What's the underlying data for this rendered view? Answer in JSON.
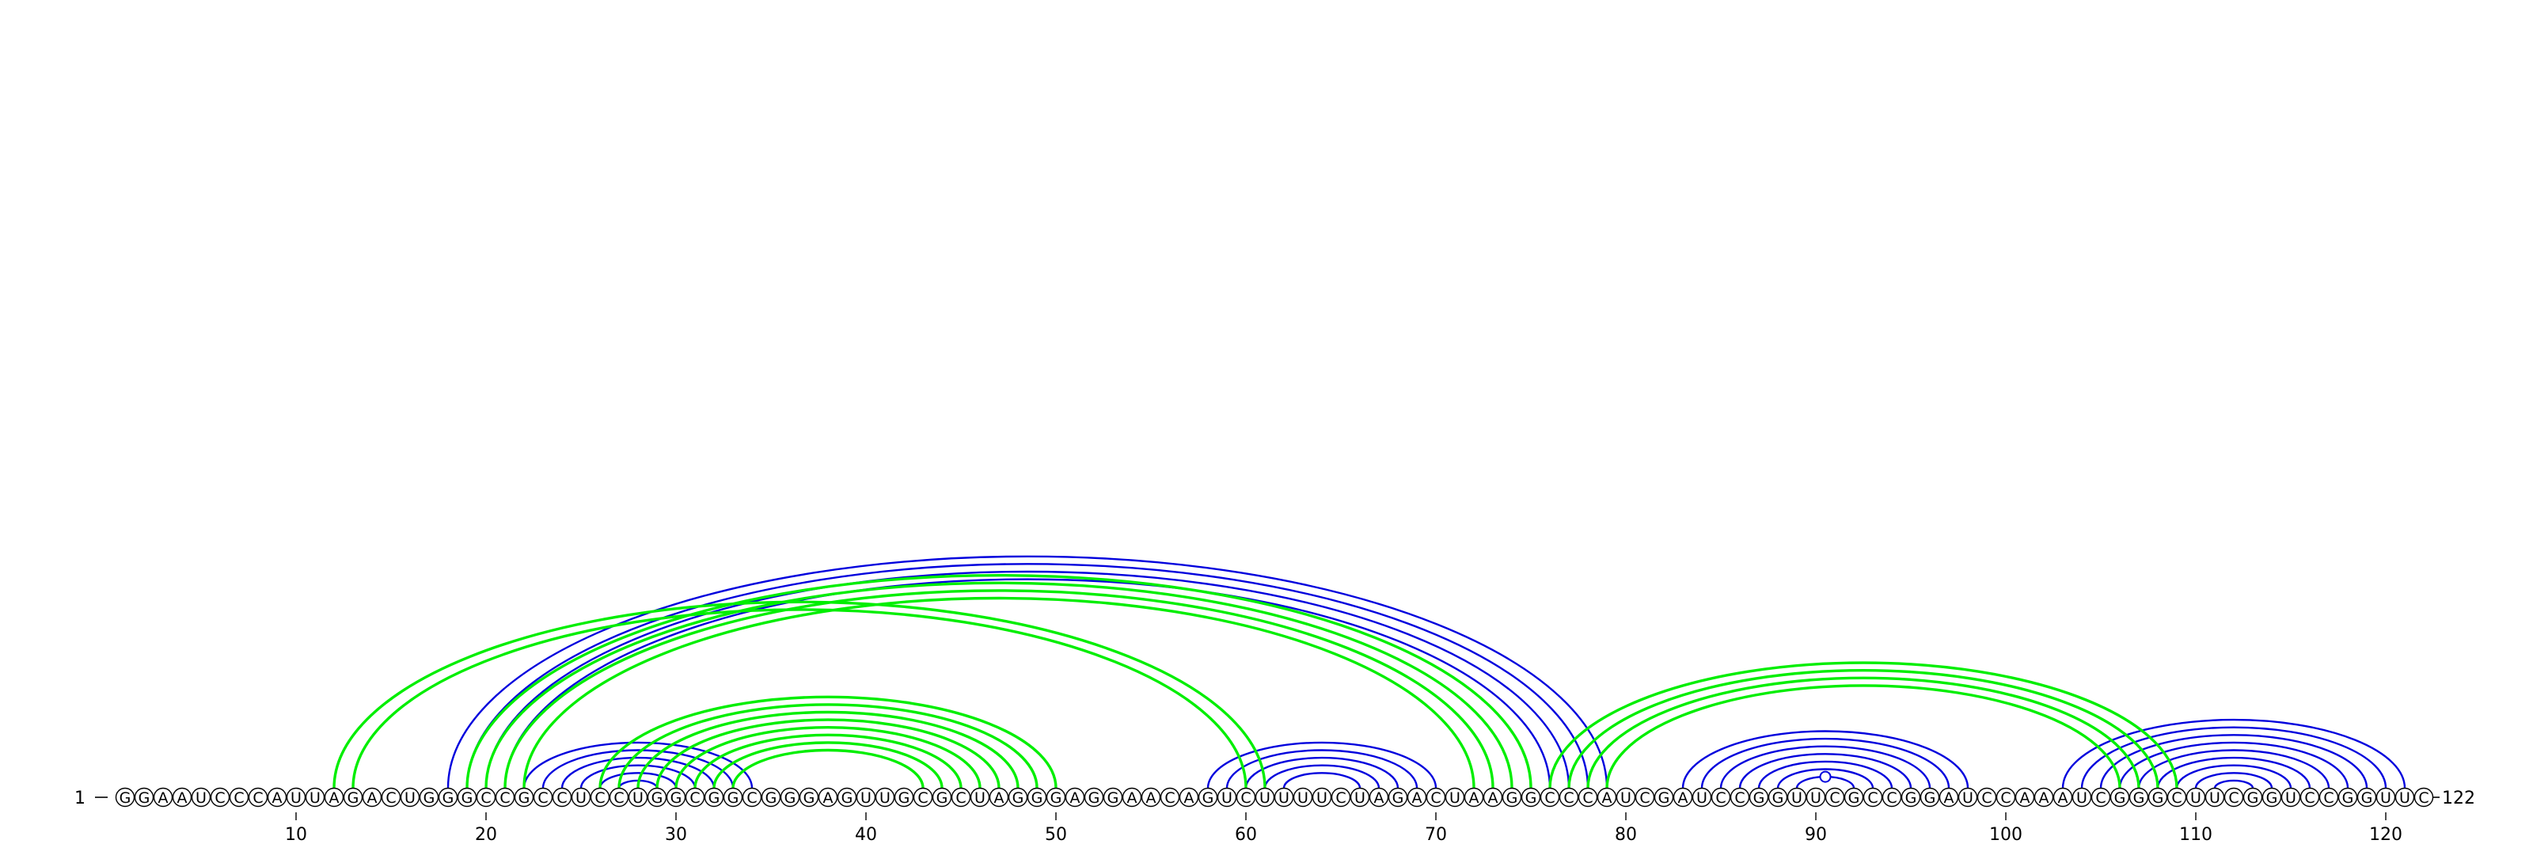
{
  "title": "",
  "sequence": "GGAAUCCCAUUAGACUGGGCCGCCUCCUGGCGGCGGGAGUUGCGCUAGGGAGGAACAGUCUUUUCUAGACUAAGGCCCAUCGAUCCGGUUCGCCGGAUCCAAAUCGGGCUUCGGUCCGGUUC",
  "start_label": "1",
  "end_label": "122",
  "ticks": [
    "10",
    "20",
    "30",
    "40",
    "50",
    "60",
    "70",
    "80",
    "90",
    "100",
    "110",
    "120"
  ],
  "colors": {
    "blue": "#0000dd",
    "green": "#00ee00",
    "text": "#000000"
  },
  "structures": [
    {
      "color": "#0000dd",
      "pairs": [
        [
          18,
          79
        ],
        [
          19,
          78
        ],
        [
          20,
          77
        ],
        [
          21,
          76
        ],
        [
          22,
          34
        ],
        [
          23,
          33
        ],
        [
          24,
          32
        ],
        [
          25,
          31
        ],
        [
          26,
          30
        ],
        [
          27,
          29
        ],
        [
          58,
          70
        ],
        [
          59,
          69
        ],
        [
          60,
          68
        ],
        [
          61,
          67
        ],
        [
          62,
          66
        ],
        [
          83,
          98
        ],
        [
          84,
          97
        ],
        [
          85,
          96
        ],
        [
          86,
          95
        ],
        [
          87,
          94
        ],
        [
          88,
          93
        ],
        [
          89,
          92
        ],
        [
          103,
          121
        ],
        [
          104,
          120
        ],
        [
          105,
          119
        ],
        [
          106,
          118
        ],
        [
          107,
          117
        ],
        [
          108,
          116
        ],
        [
          109,
          115
        ],
        [
          110,
          114
        ],
        [
          111,
          113
        ]
      ],
      "marks": [
        90.5,
        111.5,
        111.5,
        111.5
      ]
    },
    {
      "color": "#00ee00",
      "pairs": [
        [
          12,
          61
        ],
        [
          13,
          60
        ],
        [
          19,
          75
        ],
        [
          20,
          74
        ],
        [
          21,
          73
        ],
        [
          22,
          72
        ],
        [
          26,
          50
        ],
        [
          27,
          49
        ],
        [
          28,
          48
        ],
        [
          29,
          47
        ],
        [
          30,
          46
        ],
        [
          31,
          45
        ],
        [
          32,
          44
        ],
        [
          33,
          43
        ],
        [
          76,
          109
        ],
        [
          77,
          108
        ],
        [
          78,
          107
        ],
        [
          79,
          106
        ]
      ],
      "marks": [
        37.5,
        26.5
      ]
    }
  ]
}
